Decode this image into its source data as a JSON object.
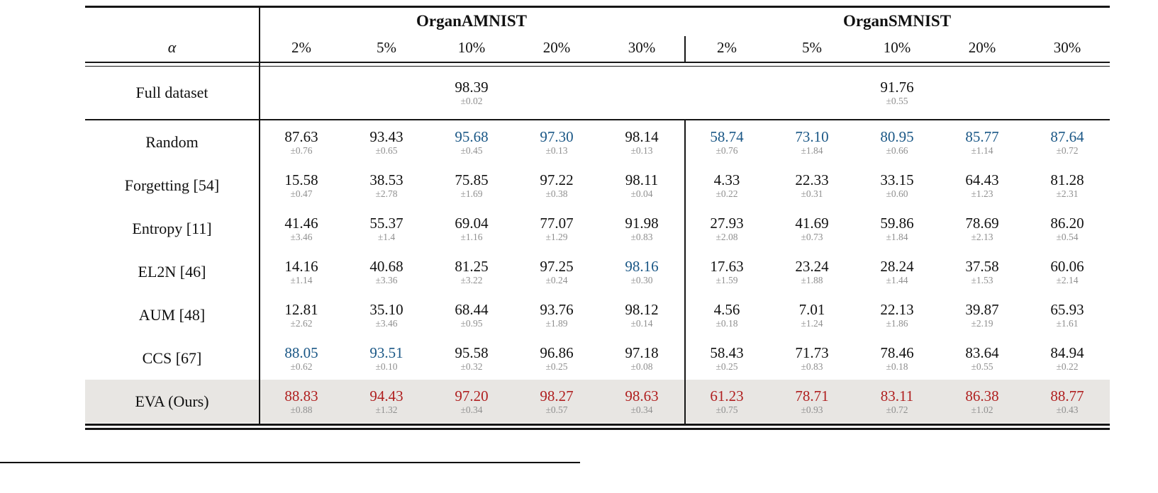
{
  "table": {
    "groups": [
      {
        "label": "OrganAMNIST"
      },
      {
        "label": "OrganSMNIST"
      }
    ],
    "alpha": "α",
    "percents": [
      "2%",
      "5%",
      "10%",
      "20%",
      "30%",
      "2%",
      "5%",
      "10%",
      "20%",
      "30%"
    ],
    "full_row": {
      "label": "Full dataset",
      "values": [
        {
          "v": "98.39",
          "s": "±0.02"
        },
        {
          "v": "91.76",
          "s": "±0.55"
        }
      ]
    },
    "rows": [
      {
        "label": "Random",
        "highlight": false,
        "cells": [
          {
            "v": "87.63",
            "s": "±0.76",
            "k": "n"
          },
          {
            "v": "93.43",
            "s": "±0.65",
            "k": "n"
          },
          {
            "v": "95.68",
            "s": "±0.45",
            "k": "b"
          },
          {
            "v": "97.30",
            "s": "±0.13",
            "k": "b"
          },
          {
            "v": "98.14",
            "s": "±0.13",
            "k": "n"
          },
          {
            "v": "58.74",
            "s": "±0.76",
            "k": "b"
          },
          {
            "v": "73.10",
            "s": "±1.84",
            "k": "b"
          },
          {
            "v": "80.95",
            "s": "±0.66",
            "k": "b"
          },
          {
            "v": "85.77",
            "s": "±1.14",
            "k": "b"
          },
          {
            "v": "87.64",
            "s": "±0.72",
            "k": "b"
          }
        ]
      },
      {
        "label": "Forgetting [54]",
        "highlight": false,
        "cells": [
          {
            "v": "15.58",
            "s": "±0.47",
            "k": "n"
          },
          {
            "v": "38.53",
            "s": "±2.78",
            "k": "n"
          },
          {
            "v": "75.85",
            "s": "±1.69",
            "k": "n"
          },
          {
            "v": "97.22",
            "s": "±0.38",
            "k": "n"
          },
          {
            "v": "98.11",
            "s": "±0.04",
            "k": "n"
          },
          {
            "v": "4.33",
            "s": "±0.22",
            "k": "n"
          },
          {
            "v": "22.33",
            "s": "±0.31",
            "k": "n"
          },
          {
            "v": "33.15",
            "s": "±0.60",
            "k": "n"
          },
          {
            "v": "64.43",
            "s": "±1.23",
            "k": "n"
          },
          {
            "v": "81.28",
            "s": "±2.31",
            "k": "n"
          }
        ]
      },
      {
        "label": "Entropy [11]",
        "highlight": false,
        "cells": [
          {
            "v": "41.46",
            "s": "±3.46",
            "k": "n"
          },
          {
            "v": "55.37",
            "s": "±1.4",
            "k": "n"
          },
          {
            "v": "69.04",
            "s": "±1.16",
            "k": "n"
          },
          {
            "v": "77.07",
            "s": "±1.29",
            "k": "n"
          },
          {
            "v": "91.98",
            "s": "±0.83",
            "k": "n"
          },
          {
            "v": "27.93",
            "s": "±2.08",
            "k": "n"
          },
          {
            "v": "41.69",
            "s": "±0.73",
            "k": "n"
          },
          {
            "v": "59.86",
            "s": "±1.84",
            "k": "n"
          },
          {
            "v": "78.69",
            "s": "±2.13",
            "k": "n"
          },
          {
            "v": "86.20",
            "s": "±0.54",
            "k": "n"
          }
        ]
      },
      {
        "label": "EL2N [46]",
        "highlight": false,
        "cells": [
          {
            "v": "14.16",
            "s": "±1.14",
            "k": "n"
          },
          {
            "v": "40.68",
            "s": "±3.36",
            "k": "n"
          },
          {
            "v": "81.25",
            "s": "±3.22",
            "k": "n"
          },
          {
            "v": "97.25",
            "s": "±0.24",
            "k": "n"
          },
          {
            "v": "98.16",
            "s": "±0.30",
            "k": "b"
          },
          {
            "v": "17.63",
            "s": "±1.59",
            "k": "n"
          },
          {
            "v": "23.24",
            "s": "±1.88",
            "k": "n"
          },
          {
            "v": "28.24",
            "s": "±1.44",
            "k": "n"
          },
          {
            "v": "37.58",
            "s": "±1.53",
            "k": "n"
          },
          {
            "v": "60.06",
            "s": "±2.14",
            "k": "n"
          }
        ]
      },
      {
        "label": "AUM [48]",
        "highlight": false,
        "cells": [
          {
            "v": "12.81",
            "s": "±2.62",
            "k": "n"
          },
          {
            "v": "35.10",
            "s": "±3.46",
            "k": "n"
          },
          {
            "v": "68.44",
            "s": "±0.95",
            "k": "n"
          },
          {
            "v": "93.76",
            "s": "±1.89",
            "k": "n"
          },
          {
            "v": "98.12",
            "s": "±0.14",
            "k": "n"
          },
          {
            "v": "4.56",
            "s": "±0.18",
            "k": "n"
          },
          {
            "v": "7.01",
            "s": "±1.24",
            "k": "n"
          },
          {
            "v": "22.13",
            "s": "±1.86",
            "k": "n"
          },
          {
            "v": "39.87",
            "s": "±2.19",
            "k": "n"
          },
          {
            "v": "65.93",
            "s": "±1.61",
            "k": "n"
          }
        ]
      },
      {
        "label": "CCS [67]",
        "highlight": false,
        "cells": [
          {
            "v": "88.05",
            "s": "±0.62",
            "k": "b"
          },
          {
            "v": "93.51",
            "s": "±0.10",
            "k": "b"
          },
          {
            "v": "95.58",
            "s": "±0.32",
            "k": "n"
          },
          {
            "v": "96.86",
            "s": "±0.25",
            "k": "n"
          },
          {
            "v": "97.18",
            "s": "±0.08",
            "k": "n"
          },
          {
            "v": "58.43",
            "s": "±0.25",
            "k": "n"
          },
          {
            "v": "71.73",
            "s": "±0.83",
            "k": "n"
          },
          {
            "v": "78.46",
            "s": "±0.18",
            "k": "n"
          },
          {
            "v": "83.64",
            "s": "±0.55",
            "k": "n"
          },
          {
            "v": "84.94",
            "s": "±0.22",
            "k": "n"
          }
        ]
      },
      {
        "label": "EVA (Ours)",
        "highlight": true,
        "cells": [
          {
            "v": "88.83",
            "s": "±0.88",
            "k": "r"
          },
          {
            "v": "94.43",
            "s": "±1.32",
            "k": "r"
          },
          {
            "v": "97.20",
            "s": "±0.34",
            "k": "r"
          },
          {
            "v": "98.27",
            "s": "±0.57",
            "k": "r"
          },
          {
            "v": "98.63",
            "s": "±0.34",
            "k": "r"
          },
          {
            "v": "61.23",
            "s": "±0.75",
            "k": "r"
          },
          {
            "v": "78.71",
            "s": "±0.93",
            "k": "r"
          },
          {
            "v": "83.11",
            "s": "±0.72",
            "k": "r"
          },
          {
            "v": "86.38",
            "s": "±1.02",
            "k": "r"
          },
          {
            "v": "88.77",
            "s": "±0.43",
            "k": "r"
          }
        ]
      }
    ],
    "colors": {
      "best": "#b02020",
      "second": "#1a5786",
      "std": "#8f8f8f",
      "highlight_bg": "#e8e6e3"
    }
  }
}
